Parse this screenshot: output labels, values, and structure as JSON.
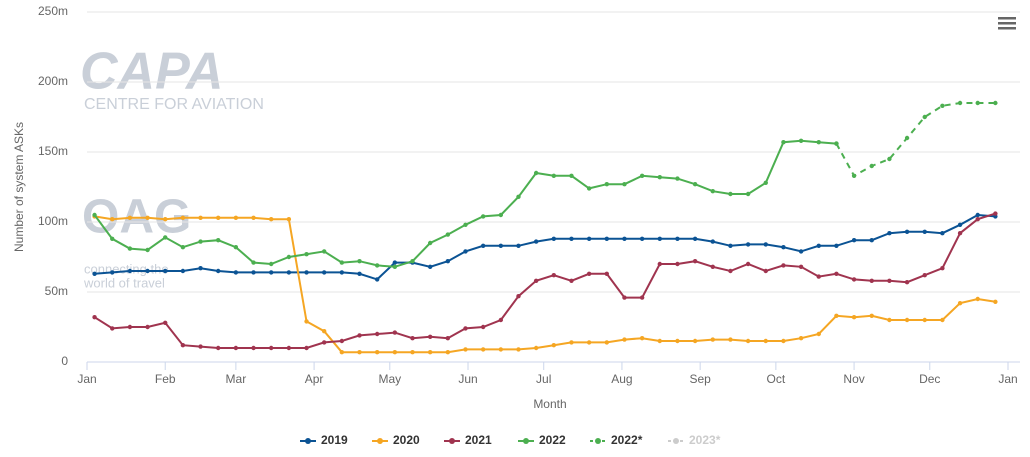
{
  "chart_data": {
    "type": "line",
    "watermark": {
      "brand": "CAPA",
      "brand_sub": "CENTRE FOR AVIATION",
      "partner": "OAG",
      "partner_sub_1": "connecting the",
      "partner_sub_2": "world of travel"
    },
    "x_label": "Month",
    "y_label": "Number of system ASKs",
    "xlim": [
      0,
      365
    ],
    "xticks": [
      {
        "value": 0,
        "label": "Jan"
      },
      {
        "value": 31,
        "label": "Feb"
      },
      {
        "value": 59,
        "label": "Mar"
      },
      {
        "value": 90,
        "label": "Apr"
      },
      {
        "value": 120,
        "label": "May"
      },
      {
        "value": 151,
        "label": "Jun"
      },
      {
        "value": 181,
        "label": "Jul"
      },
      {
        "value": 212,
        "label": "Aug"
      },
      {
        "value": 243,
        "label": "Sep"
      },
      {
        "value": 273,
        "label": "Oct"
      },
      {
        "value": 304,
        "label": "Nov"
      },
      {
        "value": 334,
        "label": "Dec"
      },
      {
        "value": 365,
        "label": "Jan"
      }
    ],
    "ylim": [
      0,
      250
    ],
    "yticks": [
      0,
      {
        "value": 50,
        "label": "50m"
      },
      {
        "value": 100,
        "label": "100m"
      },
      {
        "value": 150,
        "label": "150m"
      },
      {
        "value": 200,
        "label": "200m"
      },
      {
        "value": 250,
        "label": "250m"
      }
    ],
    "grid": true,
    "legend": "bottom",
    "x": [
      3,
      10,
      17,
      24,
      31,
      38,
      45,
      52,
      59,
      66,
      73,
      80,
      87,
      94,
      101,
      108,
      115,
      122,
      129,
      136,
      143,
      150,
      157,
      164,
      171,
      178,
      185,
      192,
      199,
      206,
      213,
      220,
      227,
      234,
      241,
      248,
      255,
      262,
      269,
      276,
      283,
      290,
      297,
      304,
      311,
      318,
      325,
      332,
      339,
      346,
      353,
      360
    ],
    "series": [
      {
        "name": "2019",
        "color": "#0b5394",
        "dashed": false,
        "values": [
          63,
          64,
          65,
          65,
          65,
          65,
          67,
          65,
          64,
          64,
          64,
          64,
          64,
          64,
          64,
          63,
          59,
          71,
          71,
          68,
          72,
          79,
          83,
          83,
          83,
          86,
          88,
          88,
          88,
          88,
          88,
          88,
          88,
          88,
          88,
          86,
          83,
          84,
          84,
          82,
          79,
          83,
          83,
          87,
          87,
          92,
          93,
          93,
          92,
          98,
          105,
          104
        ]
      },
      {
        "name": "2020",
        "color": "#f5a623",
        "dashed": false,
        "values": [
          104,
          102,
          103,
          103,
          102,
          103,
          103,
          103,
          103,
          103,
          102,
          102,
          29,
          22,
          7,
          7,
          7,
          7,
          7,
          7,
          7,
          9,
          9,
          9,
          9,
          10,
          12,
          14,
          14,
          14,
          16,
          17,
          15,
          15,
          15,
          16,
          16,
          15,
          15,
          15,
          17,
          20,
          33,
          32,
          33,
          30,
          30,
          30,
          30,
          42,
          45,
          43
        ]
      },
      {
        "name": "2021",
        "color": "#a0344f",
        "dashed": false,
        "values": [
          32,
          24,
          25,
          25,
          28,
          12,
          11,
          10,
          10,
          10,
          10,
          10,
          10,
          14,
          15,
          19,
          20,
          21,
          17,
          18,
          17,
          24,
          25,
          30,
          47,
          58,
          62,
          58,
          63,
          63,
          46,
          46,
          70,
          70,
          72,
          68,
          65,
          70,
          65,
          69,
          68,
          61,
          63,
          59,
          58,
          58,
          57,
          62,
          67,
          92,
          102,
          106
        ]
      },
      {
        "name": "2022",
        "color": "#4caf50",
        "dashed": false,
        "values": [
          105,
          88,
          81,
          80,
          89,
          82,
          86,
          87,
          82,
          71,
          70,
          75,
          77,
          79,
          71,
          72,
          69,
          68,
          72,
          85,
          91,
          98,
          104,
          105,
          118,
          135,
          133,
          133,
          124,
          127,
          127,
          133,
          132,
          131,
          127,
          122,
          120,
          120,
          128,
          157,
          158,
          157,
          156,
          null,
          null,
          null,
          null,
          null,
          null,
          null,
          null,
          null
        ]
      },
      {
        "name": "2022*",
        "color": "#4caf50",
        "dashed": true,
        "values": [
          null,
          null,
          null,
          null,
          null,
          null,
          null,
          null,
          null,
          null,
          null,
          null,
          null,
          null,
          null,
          null,
          null,
          null,
          null,
          null,
          null,
          null,
          null,
          null,
          null,
          null,
          null,
          null,
          null,
          null,
          null,
          null,
          null,
          null,
          null,
          null,
          null,
          null,
          null,
          null,
          null,
          null,
          156,
          133,
          140,
          145,
          160,
          175,
          183,
          185,
          185,
          185
        ]
      },
      {
        "name": "2023*",
        "color": "#cccccc",
        "dashed": true,
        "values": [
          null,
          null,
          null,
          null,
          null,
          null,
          null,
          null,
          null,
          null,
          null,
          null,
          null,
          null,
          null,
          null,
          null,
          null,
          null,
          null,
          null,
          null,
          null,
          null,
          null,
          null,
          null,
          null,
          null,
          null,
          null,
          null,
          null,
          null,
          null,
          null,
          null,
          null,
          null,
          null,
          null,
          null,
          null,
          null,
          null,
          null,
          null,
          null,
          null,
          null,
          null,
          null
        ]
      }
    ]
  }
}
